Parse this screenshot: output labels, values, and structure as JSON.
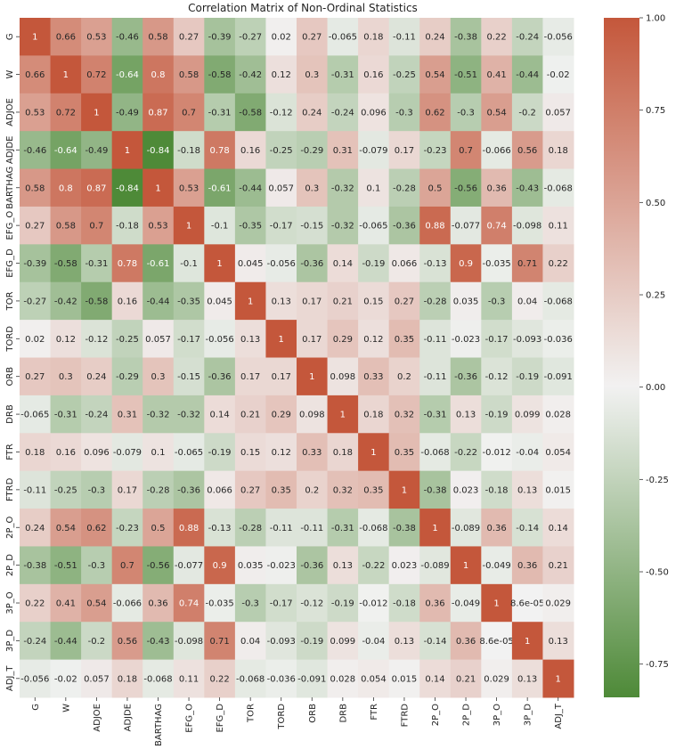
{
  "chart_data": {
    "type": "heatmap",
    "title": "Correlation Matrix of Non-Ordinal Statistics",
    "labels": [
      "G",
      "W",
      "ADJOE",
      "ADJDE",
      "BARTHAG",
      "EFG_O",
      "EFG_D",
      "TOR",
      "TORD",
      "ORB",
      "DRB",
      "FTR",
      "FTRD",
      "2P_O",
      "2P_D",
      "3P_O",
      "3P_D",
      "ADJ_T"
    ],
    "cells": [
      [
        "1",
        "0.66",
        "0.53",
        "-0.46",
        "0.58",
        "0.27",
        "-0.39",
        "-0.27",
        "0.02",
        "0.27",
        "-0.065",
        "0.18",
        "-0.11",
        "0.24",
        "-0.38",
        "0.22",
        "-0.24",
        "-0.056"
      ],
      [
        "0.66",
        "1",
        "0.72",
        "-0.64",
        "0.8",
        "0.58",
        "-0.58",
        "-0.42",
        "0.12",
        "0.3",
        "-0.31",
        "0.16",
        "-0.25",
        "0.54",
        "-0.51",
        "0.41",
        "-0.44",
        "-0.02"
      ],
      [
        "0.53",
        "0.72",
        "1",
        "-0.49",
        "0.87",
        "0.7",
        "-0.31",
        "-0.58",
        "-0.12",
        "0.24",
        "-0.24",
        "0.096",
        "-0.3",
        "0.62",
        "-0.3",
        "0.54",
        "-0.2",
        "0.057"
      ],
      [
        "-0.46",
        "-0.64",
        "-0.49",
        "1",
        "-0.84",
        "-0.18",
        "0.78",
        "0.16",
        "-0.25",
        "-0.29",
        "0.31",
        "-0.079",
        "0.17",
        "-0.23",
        "0.7",
        "-0.066",
        "0.56",
        "0.18"
      ],
      [
        "0.58",
        "0.8",
        "0.87",
        "-0.84",
        "1",
        "0.53",
        "-0.61",
        "-0.44",
        "0.057",
        "0.3",
        "-0.32",
        "0.1",
        "-0.28",
        "0.5",
        "-0.56",
        "0.36",
        "-0.43",
        "-0.068"
      ],
      [
        "0.27",
        "0.58",
        "0.7",
        "-0.18",
        "0.53",
        "1",
        "-0.1",
        "-0.35",
        "-0.17",
        "-0.15",
        "-0.32",
        "-0.065",
        "-0.36",
        "0.88",
        "-0.077",
        "0.74",
        "-0.098",
        "0.11"
      ],
      [
        "-0.39",
        "-0.58",
        "-0.31",
        "0.78",
        "-0.61",
        "-0.1",
        "1",
        "0.045",
        "-0.056",
        "-0.36",
        "0.14",
        "-0.19",
        "0.066",
        "-0.13",
        "0.9",
        "-0.035",
        "0.71",
        "0.22"
      ],
      [
        "-0.27",
        "-0.42",
        "-0.58",
        "0.16",
        "-0.44",
        "-0.35",
        "0.045",
        "1",
        "0.13",
        "0.17",
        "0.21",
        "0.15",
        "0.27",
        "-0.28",
        "0.035",
        "-0.3",
        "0.04",
        "-0.068"
      ],
      [
        "0.02",
        "0.12",
        "-0.12",
        "-0.25",
        "0.057",
        "-0.17",
        "-0.056",
        "0.13",
        "1",
        "0.17",
        "0.29",
        "0.12",
        "0.35",
        "-0.11",
        "-0.023",
        "-0.17",
        "-0.093",
        "-0.036"
      ],
      [
        "0.27",
        "0.3",
        "0.24",
        "-0.29",
        "0.3",
        "-0.15",
        "-0.36",
        "0.17",
        "0.17",
        "1",
        "0.098",
        "0.33",
        "0.2",
        "-0.11",
        "-0.36",
        "-0.12",
        "-0.19",
        "-0.091"
      ],
      [
        "-0.065",
        "-0.31",
        "-0.24",
        "0.31",
        "-0.32",
        "-0.32",
        "0.14",
        "0.21",
        "0.29",
        "0.098",
        "1",
        "0.18",
        "0.32",
        "-0.31",
        "0.13",
        "-0.19",
        "0.099",
        "0.028"
      ],
      [
        "0.18",
        "0.16",
        "0.096",
        "-0.079",
        "0.1",
        "-0.065",
        "-0.19",
        "0.15",
        "0.12",
        "0.33",
        "0.18",
        "1",
        "0.35",
        "-0.068",
        "-0.22",
        "-0.012",
        "-0.04",
        "0.054"
      ],
      [
        "-0.11",
        "-0.25",
        "-0.3",
        "0.17",
        "-0.28",
        "-0.36",
        "0.066",
        "0.27",
        "0.35",
        "0.2",
        "0.32",
        "0.35",
        "1",
        "-0.38",
        "0.023",
        "-0.18",
        "0.13",
        "0.015"
      ],
      [
        "0.24",
        "0.54",
        "0.62",
        "-0.23",
        "0.5",
        "0.88",
        "-0.13",
        "-0.28",
        "-0.11",
        "-0.11",
        "-0.31",
        "-0.068",
        "-0.38",
        "1",
        "-0.089",
        "0.36",
        "-0.14",
        "0.14"
      ],
      [
        "-0.38",
        "-0.51",
        "-0.3",
        "0.7",
        "-0.56",
        "-0.077",
        "0.9",
        "0.035",
        "-0.023",
        "-0.36",
        "0.13",
        "-0.22",
        "0.023",
        "-0.089",
        "1",
        "-0.049",
        "0.36",
        "0.21"
      ],
      [
        "0.22",
        "0.41",
        "0.54",
        "-0.066",
        "0.36",
        "0.74",
        "-0.035",
        "-0.3",
        "-0.17",
        "-0.12",
        "-0.19",
        "-0.012",
        "-0.18",
        "0.36",
        "-0.049",
        "1",
        "8.6e-05",
        "0.029"
      ],
      [
        "-0.24",
        "-0.44",
        "-0.2",
        "0.56",
        "-0.43",
        "-0.098",
        "0.71",
        "0.04",
        "-0.093",
        "-0.19",
        "0.099",
        "-0.04",
        "0.13",
        "-0.14",
        "0.36",
        "8.6e-05",
        "1",
        "0.13"
      ],
      [
        "-0.056",
        "-0.02",
        "0.057",
        "0.18",
        "-0.068",
        "0.11",
        "0.22",
        "-0.068",
        "-0.036",
        "-0.091",
        "0.028",
        "0.054",
        "0.015",
        "0.14",
        "0.21",
        "0.029",
        "0.13",
        "1"
      ]
    ],
    "colorbar": {
      "min": -0.84,
      "max": 1.0,
      "ticks": [
        "1.00",
        "0.75",
        "0.50",
        "0.25",
        "0.00",
        "-0.25",
        "-0.50",
        "-0.75"
      ],
      "colors": {
        "negative": "#4e8a38",
        "center": "#f2f2f2",
        "positive": "#c4573b"
      }
    },
    "grid": false
  }
}
